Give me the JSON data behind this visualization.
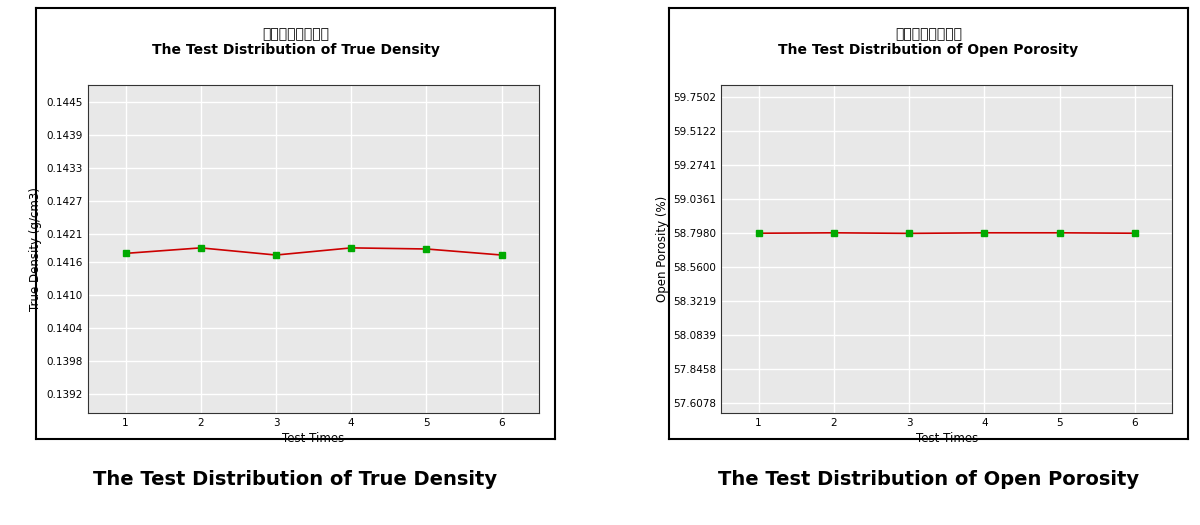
{
  "chart1": {
    "title_cn": "真密度测试分布图",
    "title_en": "The Test Distribution of True Density",
    "xlabel": "Test Times",
    "ylabel": "True Density (g/cm3)",
    "x": [
      1,
      2,
      3,
      4,
      5,
      6
    ],
    "y": [
      0.14175,
      0.14185,
      0.14172,
      0.14185,
      0.14183,
      0.14172
    ],
    "ytick_vals": [
      0.1392,
      0.1398,
      0.1404,
      0.141,
      0.1416,
      0.1421,
      0.1427,
      0.1433,
      0.1439,
      0.1445
    ],
    "ytick_labels": [
      "0.1392",
      "0.1398",
      "0.1404",
      "0.1410",
      "0.1416",
      "0.1421",
      "0.1427",
      "0.1433",
      "0.1439",
      "0.1445"
    ],
    "ylim": [
      0.13885,
      0.1448
    ],
    "line_color": "#cc0000",
    "marker_color": "#00aa00",
    "marker": "s"
  },
  "chart2": {
    "title_cn": "开孔率测试分布图",
    "title_en": "The Test Distribution of Open Porosity",
    "xlabel": "Test Times",
    "ylabel": "Open Porosity (%)",
    "x": [
      1,
      2,
      3,
      4,
      5,
      6
    ],
    "y": [
      58.797,
      58.8,
      58.796,
      58.8,
      58.8,
      58.797
    ],
    "ytick_vals": [
      57.6078,
      57.8458,
      58.0839,
      58.3219,
      58.56,
      58.798,
      59.0361,
      59.2741,
      59.5122,
      59.7502
    ],
    "ytick_labels": [
      "57.6078",
      "57.8458",
      "58.0839",
      "58.3219",
      "58.5600",
      "58.7980",
      "59.0361",
      "59.2741",
      "59.5122",
      "59.7502"
    ],
    "ylim": [
      57.54,
      59.83
    ],
    "line_color": "#cc0000",
    "marker_color": "#00aa00",
    "marker": "s"
  },
  "caption1": "The Test Distribution of True Density",
  "caption2": "The Test Distribution of Open Porosity",
  "bg_color": "#ffffff",
  "plot_bg_color": "#e8e8e8",
  "grid_color": "#ffffff",
  "border_color": "#000000"
}
